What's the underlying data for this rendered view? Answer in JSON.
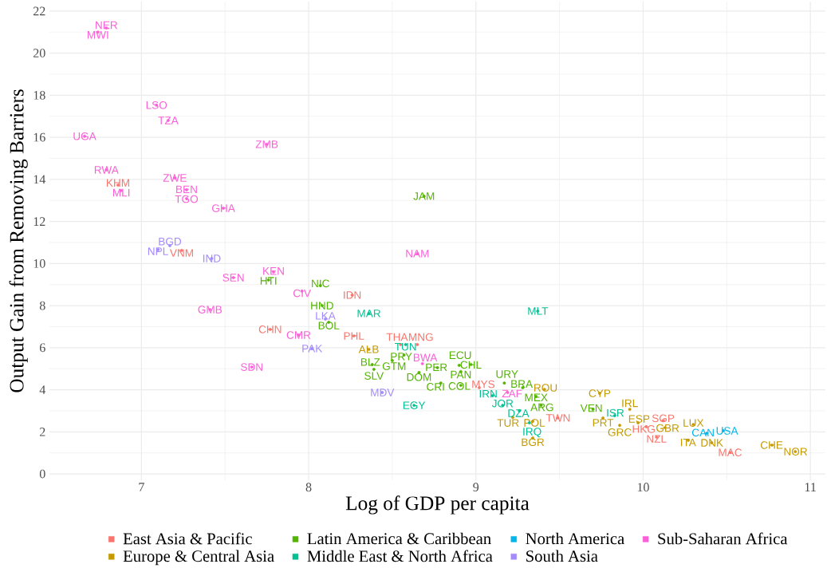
{
  "chart_data": {
    "type": "scatter",
    "xlabel": "Log of GDP per capita",
    "ylabel": "Output Gain from Removing Barriers",
    "xlim": [
      6.45,
      11.09
    ],
    "ylim": [
      -0.3,
      22.45
    ],
    "xticks": [
      7,
      8,
      9,
      10,
      11
    ],
    "yticks": [
      0,
      2,
      4,
      6,
      8,
      10,
      12,
      14,
      16,
      18,
      20,
      22
    ],
    "grid": true,
    "legend": "bottom",
    "marker": "circle",
    "series": [
      {
        "name": "East Asia & Pacific",
        "color": "#f8766d",
        "x": [
          6.86,
          7.24,
          7.77,
          8.26,
          8.27,
          8.55,
          8.65,
          9.02,
          9.49,
          10.02,
          10.12,
          10.08,
          10.52
        ],
        "values": [
          13.73,
          10.62,
          6.87,
          8.5,
          6.56,
          6.15,
          6.15,
          4.1,
          2.66,
          2.24,
          2.54,
          1.75,
          1.02
        ],
        "value_labels": [
          "KHM",
          "VNM",
          "CHN",
          "IDN",
          "PHL",
          "THA",
          "MNG",
          "MYS",
          "TWN",
          "HKG",
          "SGP",
          "NZL",
          "MAC"
        ]
      },
      {
        "name": "Europe & Central Asia",
        "color": "#c49a00",
        "x": [
          8.36,
          9.22,
          9.34,
          9.34,
          9.41,
          9.74,
          9.76,
          9.86,
          9.92,
          9.97,
          10.13,
          10.3,
          10.27,
          10.41,
          10.77,
          10.91
        ],
        "values": [
          5.92,
          2.69,
          2.5,
          1.71,
          4.02,
          3.83,
          2.66,
          2.31,
          3.07,
          2.43,
          2.2,
          2.35,
          1.6,
          1.48,
          1.37,
          1.06
        ],
        "value_labels": [
          "ALB",
          "TUR",
          "POL",
          "BGR",
          "ROU",
          "CYP",
          "PRT",
          "GRC",
          "IRL",
          "ESP",
          "GBR",
          "LUX",
          "ITA",
          "DNK",
          "CHE",
          "NOR"
        ]
      },
      {
        "name": "Latin America & Caribbean",
        "color": "#53b400",
        "x": [
          7.76,
          8.07,
          8.08,
          8.12,
          8.38,
          8.39,
          8.5,
          8.57,
          8.69,
          8.66,
          8.77,
          8.79,
          8.9,
          8.91,
          8.91,
          8.97,
          9.17,
          9.28,
          9.36,
          9.39,
          9.7
        ],
        "values": [
          9.22,
          8.95,
          8.0,
          7.21,
          5.2,
          4.97,
          5.39,
          5.65,
          13.2,
          4.82,
          5.05,
          4.32,
          5.16,
          4.86,
          4.21,
          5.2,
          4.32,
          4.1,
          3.68,
          3.26,
          3.07
        ],
        "value_labels": [
          "HTI",
          "NIC",
          "HND",
          "BOL",
          "BLZ",
          "SLV",
          "GTM",
          "PRY",
          "JAM",
          "DOM",
          "PER",
          "CRI",
          "ECU",
          "PAN",
          "COL",
          "CHL",
          "URY",
          "BRA",
          "MEX",
          "ARG",
          "VEN"
        ]
      },
      {
        "name": "Middle East & North Africa",
        "color": "#00c094",
        "x": [
          8.36,
          8.58,
          8.63,
          9.1,
          9.16,
          9.26,
          9.32,
          9.37,
          9.83
        ],
        "values": [
          7.63,
          6.15,
          3.26,
          3.72,
          3.26,
          3.0,
          2.43,
          7.74,
          2.77
        ],
        "value_labels": [
          "MAR",
          "TUN",
          "EGY",
          "IRN",
          "JOR",
          "DZA",
          "IRQ",
          "MLT",
          "ISR"
        ]
      },
      {
        "name": "North America",
        "color": "#00b6eb",
        "x": [
          10.38,
          10.48
        ],
        "values": [
          1.93,
          2.05
        ],
        "value_labels": [
          "CAN",
          "USA"
        ]
      },
      {
        "name": "South Asia",
        "color": "#a58aff",
        "x": [
          7.1,
          7.17,
          7.42,
          8.02,
          8.1,
          8.44
        ],
        "values": [
          10.66,
          10.85,
          10.24,
          5.96,
          7.36,
          3.87
        ],
        "value_labels": [
          "NPL",
          "BGD",
          "IND",
          "PAK",
          "LKA",
          "MDV"
        ]
      },
      {
        "name": "Sub-Saharan Africa",
        "color": "#fb61d7",
        "x": [
          6.66,
          6.74,
          6.79,
          6.79,
          6.88,
          7.09,
          7.16,
          7.2,
          7.27,
          7.27,
          7.49,
          7.41,
          7.55,
          7.66,
          7.75,
          7.79,
          7.94,
          7.96,
          8.65,
          8.68,
          9.19
        ],
        "values": [
          16.05,
          21.0,
          21.2,
          14.45,
          13.47,
          17.53,
          16.8,
          14.07,
          13.5,
          13.09,
          12.63,
          7.81,
          9.33,
          5.08,
          15.67,
          9.6,
          6.6,
          8.69,
          10.47,
          5.24,
          3.87
        ],
        "value_labels": [
          "UGA",
          "MWI",
          "NER",
          "RWA",
          "MLI",
          "LSO",
          "TZA",
          "ZWE",
          "BEN",
          "TGO",
          "GHA",
          "GMB",
          "SEN",
          "SDN",
          "ZMB",
          "KEN",
          "CMR",
          "CIV",
          "NAM",
          "BWA",
          "ZAF"
        ]
      }
    ]
  }
}
